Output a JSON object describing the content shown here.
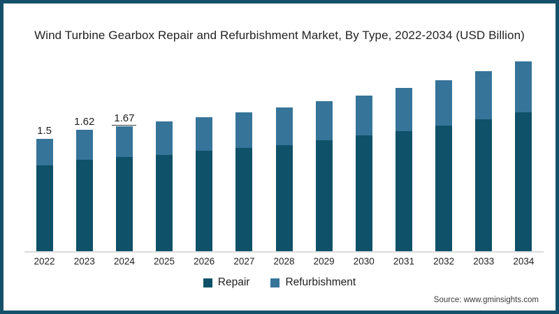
{
  "title": "Wind Turbine Gearbox Repair and Refurbishment Market, By Type, 2022-2034 (USD Billion)",
  "source": {
    "text": "Source: www.gminsights.com"
  },
  "colors": {
    "frame_border": "#15506b",
    "axis_line": "#dcdcdc",
    "repair": "#0e5168",
    "refurbishment": "#36749a",
    "text": "#1d1d1d"
  },
  "chart_data": {
    "type": "bar",
    "stacked": true,
    "title": "Wind Turbine Gearbox Repair and Refurbishment Market, By Type, 2022-2034 (USD Billion)",
    "categories": [
      "2022",
      "2023",
      "2024",
      "2025",
      "2026",
      "2027",
      "2028",
      "2029",
      "2030",
      "2031",
      "2032",
      "2033",
      "2034"
    ],
    "series": [
      {
        "name": "Repair",
        "color": "#0e5168",
        "values": [
          1.15,
          1.22,
          1.26,
          1.29,
          1.34,
          1.38,
          1.42,
          1.48,
          1.55,
          1.6,
          1.68,
          1.76,
          1.85
        ]
      },
      {
        "name": "Refurbishment",
        "color": "#36749a",
        "values": [
          0.35,
          0.4,
          0.41,
          0.44,
          0.45,
          0.47,
          0.5,
          0.52,
          0.53,
          0.58,
          0.6,
          0.64,
          0.68
        ]
      }
    ],
    "totals": [
      1.5,
      1.62,
      1.67,
      1.73,
      1.79,
      1.85,
      1.92,
      2.0,
      2.08,
      2.18,
      2.28,
      2.4,
      2.53
    ],
    "data_labels": [
      {
        "category": "2022",
        "text": "1.5",
        "underline": false
      },
      {
        "category": "2023",
        "text": "1.62",
        "underline": false
      },
      {
        "category": "2024",
        "text": "1.67",
        "underline": true
      }
    ],
    "xlabel": "",
    "ylabel": "",
    "ylim": [
      0,
      2.8
    ],
    "grid": false,
    "legend_position": "bottom"
  }
}
